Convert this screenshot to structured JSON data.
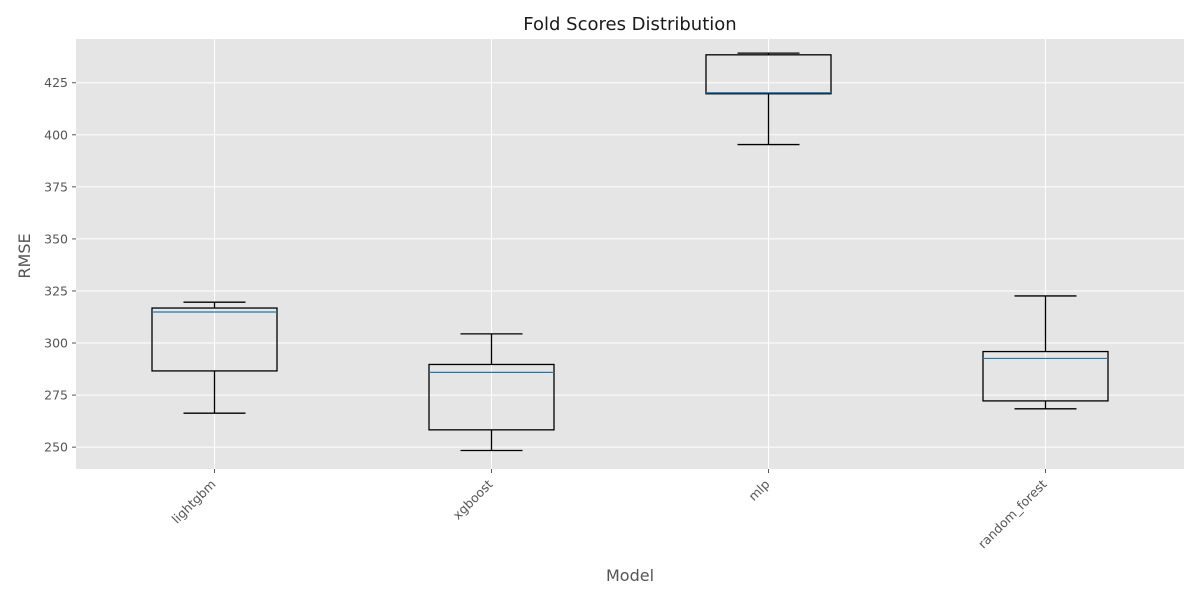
{
  "chart_data": {
    "type": "boxplot",
    "title": "Fold Scores Distribution",
    "xlabel": "Model",
    "ylabel": "RMSE",
    "categories": [
      "lightgbm",
      "xgboost",
      "mlp",
      "random_forest"
    ],
    "ylim": [
      239.5,
      446
    ],
    "yticks": [
      250,
      275,
      300,
      325,
      350,
      375,
      400,
      425
    ],
    "grid": true,
    "boxes": [
      {
        "name": "lightgbm",
        "whislo": 266.3,
        "q1": 286.6,
        "med": 314.9,
        "q3": 316.8,
        "whishi": 319.6
      },
      {
        "name": "xgboost",
        "whislo": 248.4,
        "q1": 258.3,
        "med": 285.9,
        "q3": 289.7,
        "whishi": 304.4
      },
      {
        "name": "mlp",
        "whislo": 395.3,
        "q1": 419.7,
        "med": 420.2,
        "q3": 438.4,
        "whishi": 439.2
      },
      {
        "name": "random_forest",
        "whislo": 268.4,
        "q1": 272.2,
        "med": 292.6,
        "q3": 295.9,
        "whishi": 322.6
      }
    ],
    "colors": {
      "plot_bg": "#e5e5e5",
      "box": "#000000",
      "median": "#1f77b4",
      "grid": "#ffffff"
    }
  }
}
